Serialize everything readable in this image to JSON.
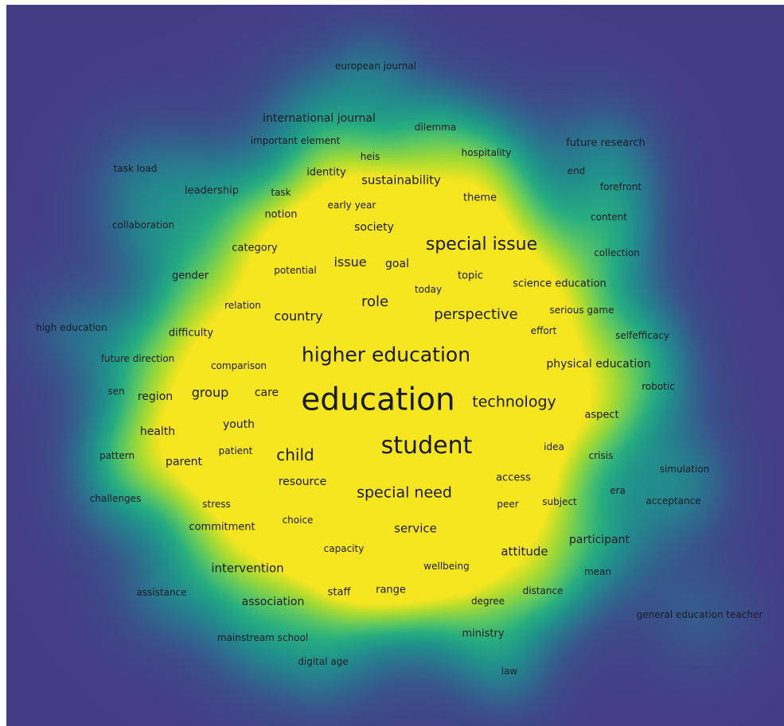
{
  "terms": [
    {
      "id": "education",
      "label": "education",
      "weight": 1.0
    },
    {
      "id": "student",
      "label": "student",
      "weight": 0.7
    },
    {
      "id": "higher-education",
      "label": "higher education",
      "weight": 0.58
    },
    {
      "id": "special-issue",
      "label": "special issue",
      "weight": 0.48
    },
    {
      "id": "special-need",
      "label": "special need",
      "weight": 0.44
    },
    {
      "id": "technology",
      "label": "technology",
      "weight": 0.42
    },
    {
      "id": "perspective",
      "label": "perspective",
      "weight": 0.4
    },
    {
      "id": "child",
      "label": "child",
      "weight": 0.42
    },
    {
      "id": "role",
      "label": "role",
      "weight": 0.38
    },
    {
      "id": "country",
      "label": "country",
      "weight": 0.32
    },
    {
      "id": "group",
      "label": "group",
      "weight": 0.32
    },
    {
      "id": "issue",
      "label": "issue",
      "weight": 0.32
    },
    {
      "id": "sustainability",
      "label": "sustainability",
      "weight": 0.3
    },
    {
      "id": "service",
      "label": "service",
      "weight": 0.3
    },
    {
      "id": "attitude",
      "label": "attitude",
      "weight": 0.3
    },
    {
      "id": "intervention",
      "label": "intervention",
      "weight": 0.28
    },
    {
      "id": "resource",
      "label": "resource",
      "weight": 0.26
    },
    {
      "id": "health",
      "label": "health",
      "weight": 0.26
    },
    {
      "id": "international-journal",
      "label": "international journal",
      "weight": 0.26
    },
    {
      "id": "goal",
      "label": "goal",
      "weight": 0.24
    },
    {
      "id": "society",
      "label": "society",
      "weight": 0.24
    },
    {
      "id": "parent",
      "label": "parent",
      "weight": 0.24
    },
    {
      "id": "care",
      "label": "care",
      "weight": 0.22
    },
    {
      "id": "youth",
      "label": "youth",
      "weight": 0.22
    },
    {
      "id": "region",
      "label": "region",
      "weight": 0.22
    },
    {
      "id": "association",
      "label": "association",
      "weight": 0.22
    },
    {
      "id": "physical-education",
      "label": "physical education",
      "weight": 0.22
    },
    {
      "id": "participant",
      "label": "participant",
      "weight": 0.22
    },
    {
      "id": "leadership",
      "label": "leadership",
      "weight": 0.2
    },
    {
      "id": "notion",
      "label": "notion",
      "weight": 0.2
    },
    {
      "id": "category",
      "label": "category",
      "weight": 0.2
    },
    {
      "id": "gender",
      "label": "gender",
      "weight": 0.2
    },
    {
      "id": "difficulty",
      "label": "difficulty",
      "weight": 0.2
    },
    {
      "id": "science-education",
      "label": "science education",
      "weight": 0.2
    },
    {
      "id": "commitment",
      "label": "commitment",
      "weight": 0.2
    },
    {
      "id": "access",
      "label": "access",
      "weight": 0.2
    },
    {
      "id": "ministry",
      "label": "ministry",
      "weight": 0.2
    },
    {
      "id": "theme",
      "label": "theme",
      "weight": 0.2
    },
    {
      "id": "topic",
      "label": "topic",
      "weight": 0.2
    },
    {
      "id": "identity",
      "label": "identity",
      "weight": 0.2
    },
    {
      "id": "aspect",
      "label": "aspect",
      "weight": 0.2
    },
    {
      "id": "future-research",
      "label": "future research",
      "weight": 0.2
    },
    {
      "id": "staff",
      "label": "staff",
      "weight": 0.18
    },
    {
      "id": "range",
      "label": "range",
      "weight": 0.18
    },
    {
      "id": "european-journal",
      "label": "european journal",
      "weight": 0.18
    },
    {
      "id": "dilemma",
      "label": "dilemma",
      "weight": 0.18
    },
    {
      "id": "hospitality",
      "label": "hospitality",
      "weight": 0.18
    },
    {
      "id": "important-element",
      "label": "important element",
      "weight": 0.18
    },
    {
      "id": "heis",
      "label": "heis",
      "weight": 0.18
    },
    {
      "id": "task-load",
      "label": "task load",
      "weight": 0.18
    },
    {
      "id": "task",
      "label": "task",
      "weight": 0.18
    },
    {
      "id": "early-year",
      "label": "early year",
      "weight": 0.18
    },
    {
      "id": "end",
      "label": "end",
      "weight": 0.18
    },
    {
      "id": "forefront",
      "label": "forefront",
      "weight": 0.18
    },
    {
      "id": "content",
      "label": "content",
      "weight": 0.18
    },
    {
      "id": "collaboration",
      "label": "collaboration",
      "weight": 0.18
    },
    {
      "id": "potential",
      "label": "potential",
      "weight": 0.18
    },
    {
      "id": "collection",
      "label": "collection",
      "weight": 0.18
    },
    {
      "id": "today",
      "label": "today",
      "weight": 0.18
    },
    {
      "id": "relation",
      "label": "relation",
      "weight": 0.18
    },
    {
      "id": "serious-game",
      "label": "serious game",
      "weight": 0.18
    },
    {
      "id": "high-education",
      "label": "high education",
      "weight": 0.18
    },
    {
      "id": "effort",
      "label": "effort",
      "weight": 0.18
    },
    {
      "id": "selfefficacy",
      "label": "selfefficacy",
      "weight": 0.18
    },
    {
      "id": "future-direction",
      "label": "future direction",
      "weight": 0.18
    },
    {
      "id": "comparison",
      "label": "comparison",
      "weight": 0.18
    },
    {
      "id": "sen",
      "label": "sen",
      "weight": 0.18
    },
    {
      "id": "robotic",
      "label": "robotic",
      "weight": 0.18
    },
    {
      "id": "idea",
      "label": "idea",
      "weight": 0.18
    },
    {
      "id": "pattern",
      "label": "pattern",
      "weight": 0.18
    },
    {
      "id": "patient",
      "label": "patient",
      "weight": 0.18
    },
    {
      "id": "crisis",
      "label": "crisis",
      "weight": 0.18
    },
    {
      "id": "simulation",
      "label": "simulation",
      "weight": 0.18
    },
    {
      "id": "challenges",
      "label": "challenges",
      "weight": 0.18
    },
    {
      "id": "stress",
      "label": "stress",
      "weight": 0.18
    },
    {
      "id": "era",
      "label": "era",
      "weight": 0.18
    },
    {
      "id": "peer",
      "label": "peer",
      "weight": 0.18
    },
    {
      "id": "subject",
      "label": "subject",
      "weight": 0.18
    },
    {
      "id": "acceptance",
      "label": "acceptance",
      "weight": 0.18
    },
    {
      "id": "choice",
      "label": "choice",
      "weight": 0.18
    },
    {
      "id": "capacity",
      "label": "capacity",
      "weight": 0.18
    },
    {
      "id": "mean",
      "label": "mean",
      "weight": 0.18
    },
    {
      "id": "wellbeing",
      "label": "wellbeing",
      "weight": 0.18
    },
    {
      "id": "assistance",
      "label": "assistance",
      "weight": 0.18
    },
    {
      "id": "distance",
      "label": "distance",
      "weight": 0.18
    },
    {
      "id": "degree",
      "label": "degree",
      "weight": 0.18
    },
    {
      "id": "general-education-teacher",
      "label": "general education teacher",
      "weight": 0.18
    },
    {
      "id": "mainstream-school",
      "label": "mainstream school",
      "weight": 0.18
    },
    {
      "id": "digital-age",
      "label": "digital age",
      "weight": 0.18
    },
    {
      "id": "law",
      "label": "law",
      "weight": 0.18
    }
  ]
}
